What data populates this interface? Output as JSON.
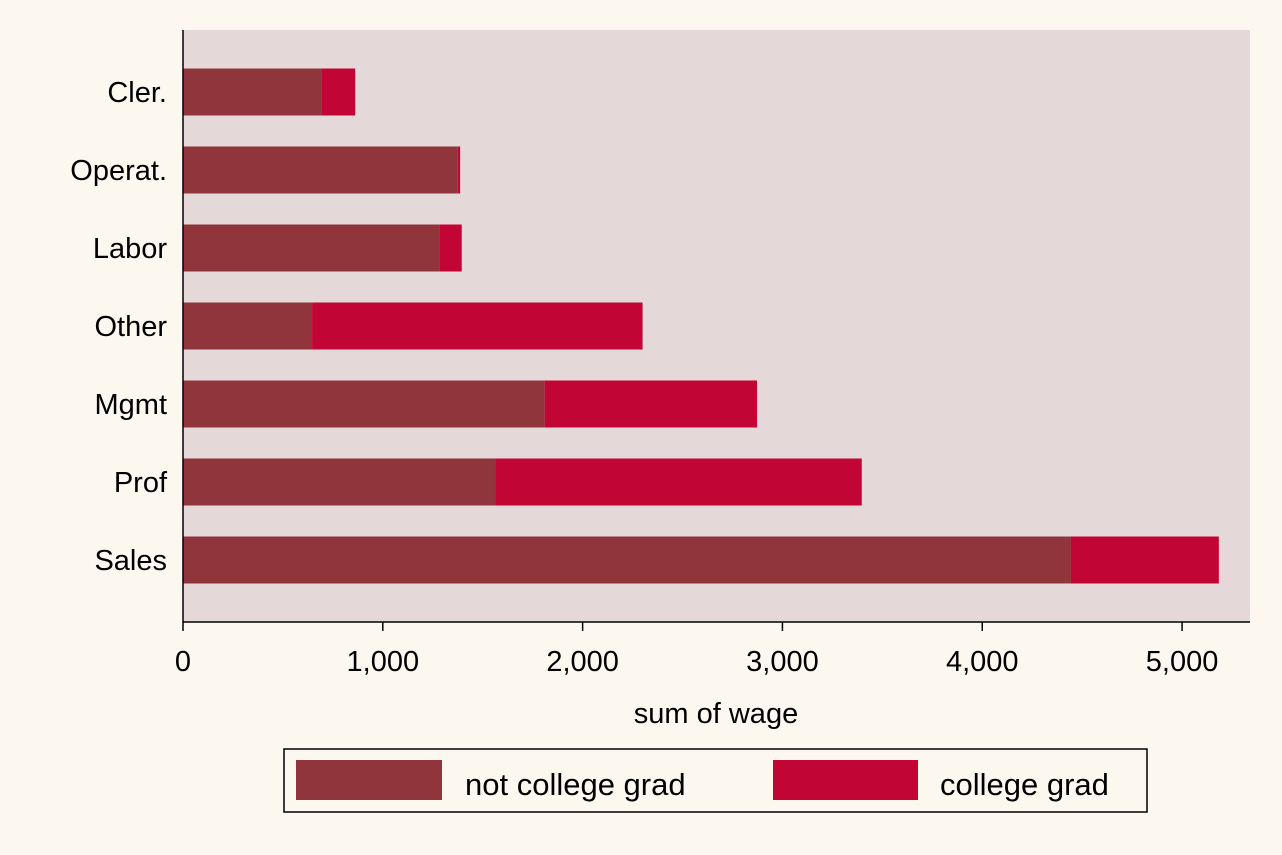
{
  "chart_data": {
    "type": "bar",
    "orientation": "horizontal",
    "stacked": true,
    "categories": [
      "Cler.",
      "Operat.",
      "Labor",
      "Other",
      "Mgmt",
      "Prof",
      "Sales"
    ],
    "series": [
      {
        "name": "not college grad",
        "values": [
          692,
          1375,
          1283,
          646,
          1810,
          1562,
          4444
        ]
      },
      {
        "name": "college grad",
        "values": [
          170,
          12,
          112,
          1654,
          1063,
          1835,
          740
        ]
      }
    ],
    "xlabel": "sum of wage",
    "ylabel": "",
    "xlim": [
      0,
      5340
    ],
    "xticks": [
      0,
      1000,
      2000,
      3000,
      4000,
      5000
    ],
    "xtick_labels": [
      "0",
      "1,000",
      "2,000",
      "3,000",
      "4,000",
      "5,000"
    ],
    "grid": false,
    "legend_position": "bottom"
  },
  "colors": {
    "not_college_grad": "#90353b",
    "college_grad": "#c10534",
    "plot_background": "#e4d9d8",
    "page_background": "#fdf8ef"
  }
}
